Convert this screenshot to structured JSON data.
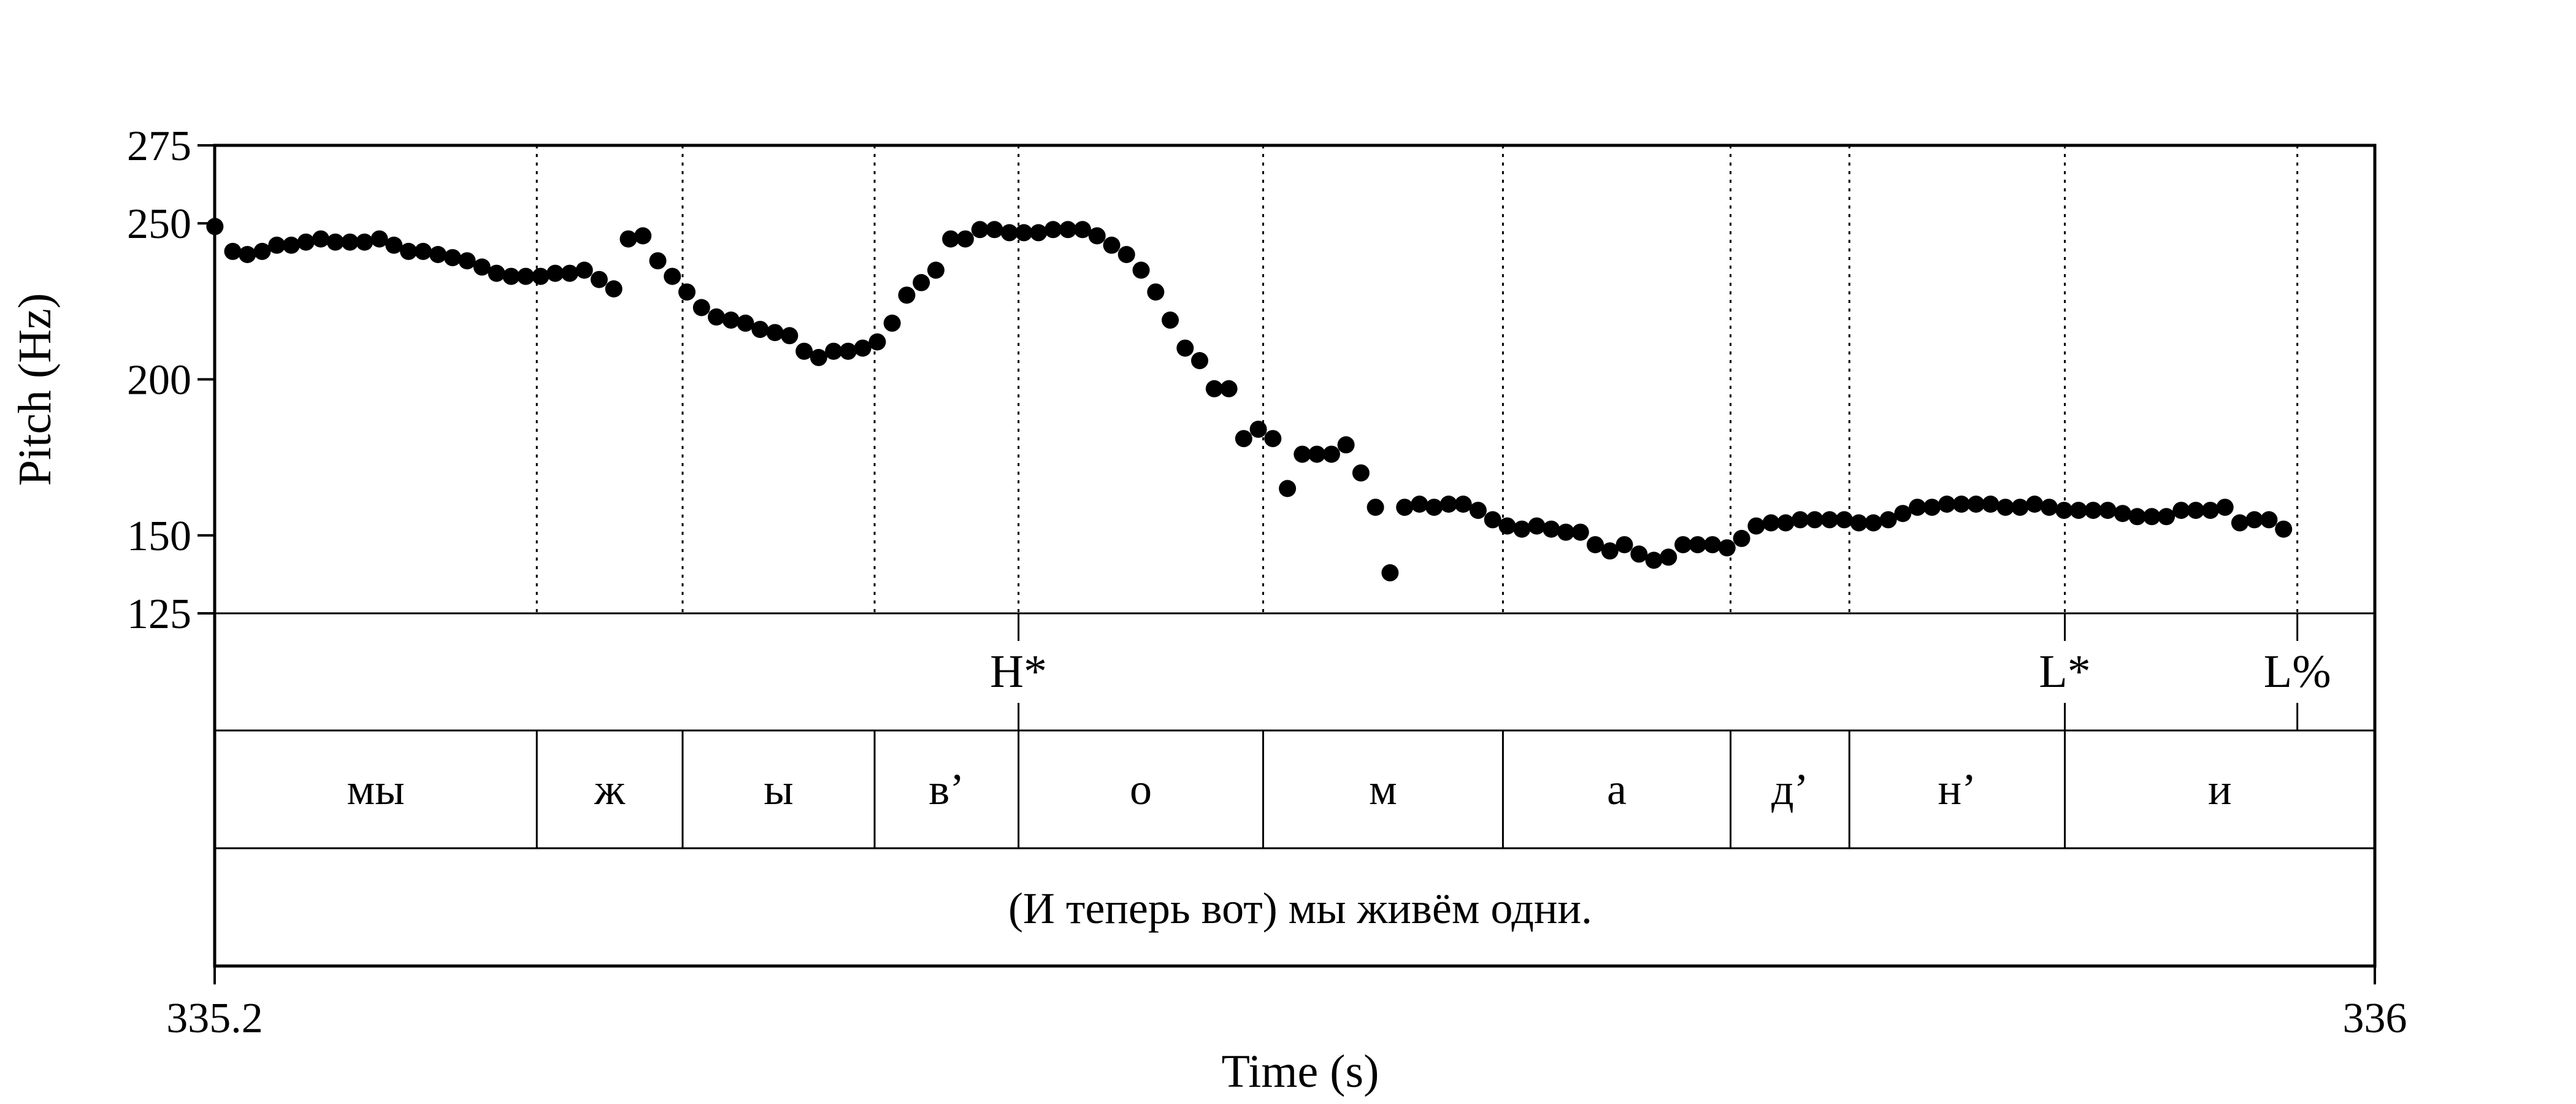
{
  "chart_data": {
    "type": "scatter",
    "xlabel": "Time (s)",
    "ylabel": "Pitch (Hz)",
    "xlim": [
      335.2,
      336
    ],
    "ylim": [
      125,
      275
    ],
    "x_ticks": [
      "335.2",
      "336"
    ],
    "y_ticks": [
      275,
      250,
      200,
      150,
      125
    ],
    "y_tick_labels": [
      "275",
      "250",
      "200",
      "150",
      "125"
    ],
    "boundaries": [
      335.3193,
      335.3733,
      335.4444,
      335.4977,
      335.5883,
      335.6771,
      335.7614,
      335.8054,
      335.8852,
      335.9713
    ],
    "tones": [
      {
        "label": "H*",
        "time": 335.4977
      },
      {
        "label": "L*",
        "time": 335.8852
      },
      {
        "label": "L%",
        "time": 335.9713
      }
    ],
    "segments": [
      {
        "label": "мы",
        "start": 335.2,
        "end": 335.3193
      },
      {
        "label": "ж",
        "start": 335.3193,
        "end": 335.3733
      },
      {
        "label": "ы",
        "start": 335.3733,
        "end": 335.4444
      },
      {
        "label": "в’",
        "start": 335.4444,
        "end": 335.4977
      },
      {
        "label": "о",
        "start": 335.4977,
        "end": 335.5883
      },
      {
        "label": "м",
        "start": 335.5883,
        "end": 335.6771
      },
      {
        "label": "а",
        "start": 335.6771,
        "end": 335.7614
      },
      {
        "label": "д’",
        "start": 335.7614,
        "end": 335.8054
      },
      {
        "label": "н’",
        "start": 335.8054,
        "end": 335.8852
      },
      {
        "label": "и",
        "start": 335.8852,
        "end": 336.0
      }
    ],
    "sentence": "(И теперь вот) мы живём одни.",
    "points": [
      {
        "t": 335.2001,
        "hz": 249
      },
      {
        "t": 335.2067,
        "hz": 241
      },
      {
        "t": 335.2121,
        "hz": 240
      },
      {
        "t": 335.2176,
        "hz": 241
      },
      {
        "t": 335.223,
        "hz": 243
      },
      {
        "t": 335.2284,
        "hz": 243
      },
      {
        "t": 335.2338,
        "hz": 244
      },
      {
        "t": 335.2393,
        "hz": 245
      },
      {
        "t": 335.2447,
        "hz": 244
      },
      {
        "t": 335.2501,
        "hz": 244
      },
      {
        "t": 335.2555,
        "hz": 244
      },
      {
        "t": 335.261,
        "hz": 245
      },
      {
        "t": 335.2664,
        "hz": 243
      },
      {
        "t": 335.2718,
        "hz": 241
      },
      {
        "t": 335.2772,
        "hz": 241
      },
      {
        "t": 335.2827,
        "hz": 240
      },
      {
        "t": 335.2881,
        "hz": 239
      },
      {
        "t": 335.2935,
        "hz": 238
      },
      {
        "t": 335.299,
        "hz": 236
      },
      {
        "t": 335.3044,
        "hz": 234
      },
      {
        "t": 335.3098,
        "hz": 233
      },
      {
        "t": 335.3152,
        "hz": 233
      },
      {
        "t": 335.3207,
        "hz": 233
      },
      {
        "t": 335.3261,
        "hz": 234
      },
      {
        "t": 335.3315,
        "hz": 234
      },
      {
        "t": 335.3369,
        "hz": 235
      },
      {
        "t": 335.3424,
        "hz": 232
      },
      {
        "t": 335.3478,
        "hz": 229
      },
      {
        "t": 335.3532,
        "hz": 245
      },
      {
        "t": 335.3586,
        "hz": 246
      },
      {
        "t": 335.3641,
        "hz": 238
      },
      {
        "t": 335.3695,
        "hz": 233
      },
      {
        "t": 335.3749,
        "hz": 228
      },
      {
        "t": 335.3803,
        "hz": 223
      },
      {
        "t": 335.3858,
        "hz": 220
      },
      {
        "t": 335.3912,
        "hz": 219
      },
      {
        "t": 335.3966,
        "hz": 218
      },
      {
        "t": 335.402,
        "hz": 216
      },
      {
        "t": 335.4075,
        "hz": 215
      },
      {
        "t": 335.4129,
        "hz": 214
      },
      {
        "t": 335.4183,
        "hz": 209
      },
      {
        "t": 335.4237,
        "hz": 207
      },
      {
        "t": 335.4292,
        "hz": 209
      },
      {
        "t": 335.4346,
        "hz": 209
      },
      {
        "t": 335.44,
        "hz": 210
      },
      {
        "t": 335.4454,
        "hz": 212
      },
      {
        "t": 335.4509,
        "hz": 218
      },
      {
        "t": 335.4563,
        "hz": 227
      },
      {
        "t": 335.4617,
        "hz": 231
      },
      {
        "t": 335.4671,
        "hz": 235
      },
      {
        "t": 335.4726,
        "hz": 245
      },
      {
        "t": 335.478,
        "hz": 245
      },
      {
        "t": 335.4834,
        "hz": 248
      },
      {
        "t": 335.4888,
        "hz": 248
      },
      {
        "t": 335.4943,
        "hz": 247
      },
      {
        "t": 335.4997,
        "hz": 247
      },
      {
        "t": 335.5051,
        "hz": 247
      },
      {
        "t": 335.5105,
        "hz": 248
      },
      {
        "t": 335.516,
        "hz": 248
      },
      {
        "t": 335.5214,
        "hz": 248
      },
      {
        "t": 335.5268,
        "hz": 246
      },
      {
        "t": 335.5322,
        "hz": 243
      },
      {
        "t": 335.5377,
        "hz": 240
      },
      {
        "t": 335.5431,
        "hz": 235
      },
      {
        "t": 335.5485,
        "hz": 228
      },
      {
        "t": 335.5539,
        "hz": 219
      },
      {
        "t": 335.5594,
        "hz": 210
      },
      {
        "t": 335.5648,
        "hz": 206
      },
      {
        "t": 335.5702,
        "hz": 197
      },
      {
        "t": 335.5756,
        "hz": 197
      },
      {
        "t": 335.5811,
        "hz": 181
      },
      {
        "t": 335.5865,
        "hz": 184
      },
      {
        "t": 335.5919,
        "hz": 181
      },
      {
        "t": 335.5973,
        "hz": 165
      },
      {
        "t": 335.6028,
        "hz": 176
      },
      {
        "t": 335.6082,
        "hz": 176
      },
      {
        "t": 335.6136,
        "hz": 176
      },
      {
        "t": 335.619,
        "hz": 179
      },
      {
        "t": 335.6245,
        "hz": 170
      },
      {
        "t": 335.6299,
        "hz": 159
      },
      {
        "t": 335.6353,
        "hz": 138
      },
      {
        "t": 335.6407,
        "hz": 159
      },
      {
        "t": 335.6462,
        "hz": 160
      },
      {
        "t": 335.6516,
        "hz": 159
      },
      {
        "t": 335.657,
        "hz": 160
      },
      {
        "t": 335.6624,
        "hz": 160
      },
      {
        "t": 335.6679,
        "hz": 158
      },
      {
        "t": 335.6733,
        "hz": 155
      },
      {
        "t": 335.6787,
        "hz": 153
      },
      {
        "t": 335.6841,
        "hz": 152
      },
      {
        "t": 335.6896,
        "hz": 153
      },
      {
        "t": 335.695,
        "hz": 152
      },
      {
        "t": 335.7004,
        "hz": 151
      },
      {
        "t": 335.7058,
        "hz": 151
      },
      {
        "t": 335.7113,
        "hz": 147
      },
      {
        "t": 335.7167,
        "hz": 145
      },
      {
        "t": 335.7221,
        "hz": 147
      },
      {
        "t": 335.7275,
        "hz": 144
      },
      {
        "t": 335.733,
        "hz": 142
      },
      {
        "t": 335.7384,
        "hz": 143
      },
      {
        "t": 335.7438,
        "hz": 147
      },
      {
        "t": 335.7492,
        "hz": 147
      },
      {
        "t": 335.7547,
        "hz": 147
      },
      {
        "t": 335.7601,
        "hz": 146
      },
      {
        "t": 335.7655,
        "hz": 149
      },
      {
        "t": 335.7709,
        "hz": 153
      },
      {
        "t": 335.7764,
        "hz": 154
      },
      {
        "t": 335.7818,
        "hz": 154
      },
      {
        "t": 335.7872,
        "hz": 155
      },
      {
        "t": 335.7926,
        "hz": 155
      },
      {
        "t": 335.7981,
        "hz": 155
      },
      {
        "t": 335.8035,
        "hz": 155
      },
      {
        "t": 335.8089,
        "hz": 154
      },
      {
        "t": 335.8143,
        "hz": 154
      },
      {
        "t": 335.8198,
        "hz": 155
      },
      {
        "t": 335.8252,
        "hz": 157
      },
      {
        "t": 335.8306,
        "hz": 159
      },
      {
        "t": 335.836,
        "hz": 159
      },
      {
        "t": 335.8415,
        "hz": 160
      },
      {
        "t": 335.8469,
        "hz": 160
      },
      {
        "t": 335.8523,
        "hz": 160
      },
      {
        "t": 335.8577,
        "hz": 160
      },
      {
        "t": 335.8632,
        "hz": 159
      },
      {
        "t": 335.8686,
        "hz": 159
      },
      {
        "t": 335.874,
        "hz": 160
      },
      {
        "t": 335.8794,
        "hz": 159
      },
      {
        "t": 335.8849,
        "hz": 158
      },
      {
        "t": 335.8903,
        "hz": 158
      },
      {
        "t": 335.8957,
        "hz": 158
      },
      {
        "t": 335.9011,
        "hz": 158
      },
      {
        "t": 335.9066,
        "hz": 157
      },
      {
        "t": 335.912,
        "hz": 156
      },
      {
        "t": 335.9174,
        "hz": 156
      },
      {
        "t": 335.9228,
        "hz": 156
      },
      {
        "t": 335.9283,
        "hz": 158
      },
      {
        "t": 335.9337,
        "hz": 158
      },
      {
        "t": 335.9391,
        "hz": 158
      },
      {
        "t": 335.9445,
        "hz": 159
      },
      {
        "t": 335.95,
        "hz": 154
      },
      {
        "t": 335.9554,
        "hz": 155
      },
      {
        "t": 335.9608,
        "hz": 155
      },
      {
        "t": 335.9662,
        "hz": 152
      }
    ]
  }
}
